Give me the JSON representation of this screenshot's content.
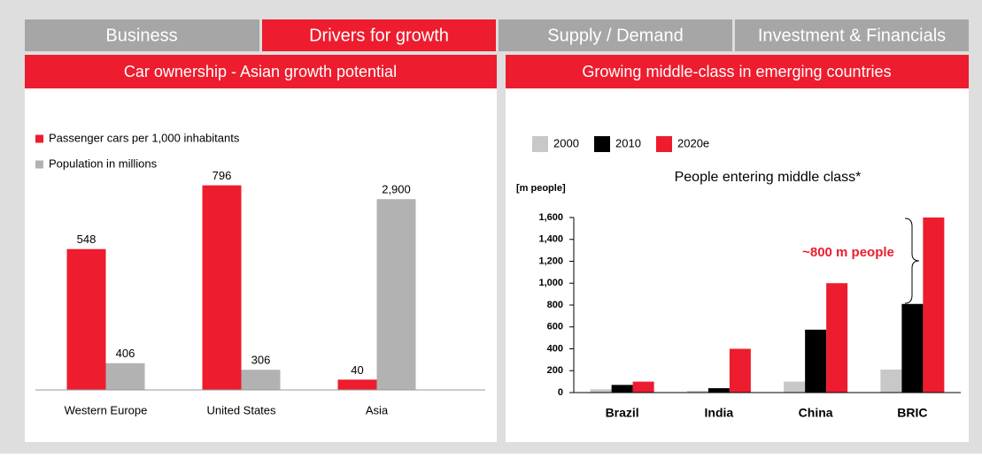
{
  "tabs": [
    "Business",
    "Drivers for growth",
    "Supply / Demand",
    "Investment & Financials"
  ],
  "chart_data": [
    {
      "type": "bar",
      "title": "Car ownership - Asian growth potential",
      "categories": [
        "Western Europe",
        "United States",
        "Asia"
      ],
      "series": [
        {
          "name": "Passenger cars per 1,000 inhabitants",
          "color": "#ed1c2e",
          "values": [
            548,
            796,
            40
          ]
        },
        {
          "name": "Population in millions",
          "color": "#b2b2b2",
          "values": [
            406,
            306,
            2900
          ],
          "value_labels": [
            "406",
            "306",
            "2,900"
          ],
          "axis": "y2"
        }
      ],
      "ylim": [
        0,
        860
      ],
      "y2lim": [
        0,
        3360
      ]
    },
    {
      "type": "bar",
      "title": "Growing middle-class in emerging countries",
      "subtitle": "People entering middle class*",
      "ylabel": "[m people]",
      "annotation": "~800 m people",
      "categories": [
        "Brazil",
        "India",
        "China",
        "BRIC"
      ],
      "series": [
        {
          "name": "2000",
          "color": "#c8c8c8",
          "values": [
            30,
            15,
            100,
            210
          ]
        },
        {
          "name": "2010",
          "color": "#000000",
          "values": [
            70,
            40,
            575,
            810
          ]
        },
        {
          "name": "2020e",
          "color": "#ed1c2e",
          "values": [
            100,
            400,
            1000,
            1600
          ]
        }
      ],
      "ylim": [
        0,
        1600
      ],
      "yticks": [
        0,
        200,
        400,
        600,
        800,
        {
          "value": 1000,
          "label": "1,000"
        },
        {
          "value": 1200,
          "label": "1,200"
        },
        {
          "value": 1400,
          "label": "1,400"
        },
        {
          "value": 1600,
          "label": "1,600"
        }
      ]
    }
  ]
}
